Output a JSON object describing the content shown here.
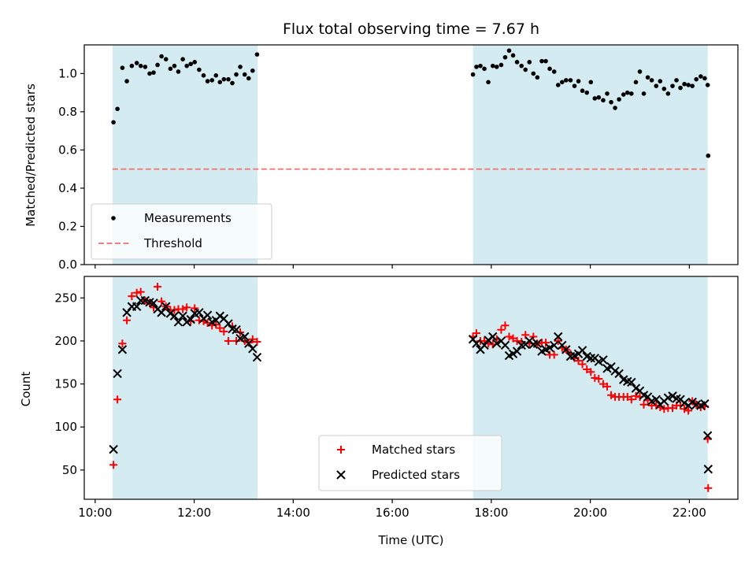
{
  "chart_data": [
    {
      "type": "scatter",
      "title": "Flux total observing time = 7.67 h",
      "xlabel": "",
      "ylabel": "Matched/Predicted stars",
      "xlim": [
        9.78,
        22.98
      ],
      "ylim": [
        0.0,
        1.15
      ],
      "yticks": [
        0.0,
        0.2,
        0.4,
        0.6,
        0.8,
        1.0
      ],
      "ytick_labels": [
        "0.0",
        "0.2",
        "0.4",
        "0.6",
        "0.8",
        "1.0"
      ],
      "legend_placement": "lower-left",
      "shaded_intervals": [
        [
          10.35,
          13.28
        ],
        [
          17.63,
          22.37
        ]
      ],
      "shade_color": "#d3ebf1",
      "series": [
        {
          "name": "Measurements",
          "marker": "dot",
          "color": "#000000",
          "x": [
            10.37,
            10.45,
            10.55,
            10.64,
            10.74,
            10.84,
            10.92,
            11.01,
            11.1,
            11.18,
            11.26,
            11.34,
            11.43,
            11.52,
            11.6,
            11.68,
            11.77,
            11.85,
            11.93,
            12.01,
            12.1,
            12.19,
            12.27,
            12.36,
            12.44,
            12.52,
            12.6,
            12.69,
            12.77,
            12.85,
            12.93,
            13.02,
            13.1,
            13.18,
            13.27,
            17.63,
            17.7,
            17.78,
            17.86,
            17.94,
            18.03,
            18.11,
            18.2,
            18.28,
            18.36,
            18.44,
            18.52,
            18.61,
            18.69,
            18.77,
            18.85,
            18.93,
            19.02,
            19.1,
            19.18,
            19.27,
            19.35,
            19.43,
            19.51,
            19.6,
            19.68,
            19.76,
            19.84,
            19.93,
            20.01,
            20.09,
            20.17,
            20.26,
            20.34,
            20.42,
            20.5,
            20.58,
            20.67,
            20.75,
            20.83,
            20.92,
            21.0,
            21.08,
            21.16,
            21.24,
            21.33,
            21.41,
            21.49,
            21.57,
            21.66,
            21.74,
            21.82,
            21.9,
            21.98,
            22.06,
            22.14,
            22.23,
            22.31,
            22.37
          ],
          "y": [
            0.745,
            0.815,
            1.03,
            0.96,
            1.04,
            1.055,
            1.04,
            1.035,
            1.0,
            1.005,
            1.045,
            1.09,
            1.075,
            1.025,
            1.04,
            1.01,
            1.075,
            1.04,
            1.05,
            1.06,
            1.02,
            0.99,
            0.96,
            0.965,
            0.99,
            0.955,
            0.97,
            0.97,
            0.95,
            0.995,
            1.035,
            0.995,
            0.975,
            1.015,
            1.1,
            0.995,
            1.035,
            1.04,
            1.025,
            0.955,
            1.04,
            1.035,
            1.045,
            1.085,
            1.12,
            1.095,
            1.06,
            1.04,
            1.02,
            1.06,
            1.0,
            0.98,
            1.065,
            1.065,
            1.025,
            1.01,
            0.94,
            0.955,
            0.965,
            0.965,
            0.935,
            0.96,
            0.91,
            0.9,
            0.955,
            0.87,
            0.875,
            0.86,
            0.895,
            0.85,
            0.82,
            0.865,
            0.89,
            0.9,
            0.895,
            0.955,
            1.01,
            0.895,
            0.98,
            0.965,
            0.935,
            0.96,
            0.92,
            0.895,
            0.935,
            0.965,
            0.925,
            0.945,
            0.94,
            0.935,
            0.97,
            0.985,
            0.975,
            0.94
          ]
        },
        {
          "name": "",
          "marker": "dot",
          "color": "#000000",
          "x": [
            22.38
          ],
          "y": [
            0.57
          ]
        },
        {
          "name": "Threshold",
          "marker": "dashed-line",
          "color": "#f08080",
          "x": [
            10.35,
            22.37
          ],
          "y": [
            0.5,
            0.5
          ]
        }
      ]
    },
    {
      "type": "scatter",
      "title": "",
      "xlabel": "Time (UTC)",
      "ylabel": "Count",
      "xlim": [
        9.78,
        22.98
      ],
      "ylim": [
        16,
        275
      ],
      "yticks": [
        50,
        100,
        150,
        200,
        250
      ],
      "ytick_labels": [
        "50",
        "100",
        "150",
        "200",
        "250"
      ],
      "xticks": [
        10,
        12,
        14,
        16,
        18,
        20,
        22
      ],
      "xtick_labels": [
        "10:00",
        "12:00",
        "14:00",
        "16:00",
        "18:00",
        "20:00",
        "22:00"
      ],
      "legend_placement": "lower-center",
      "shaded_intervals": [
        [
          10.35,
          13.28
        ],
        [
          17.63,
          22.37
        ]
      ],
      "shade_color": "#d3ebf1",
      "series": [
        {
          "name": "Matched stars",
          "marker": "plus",
          "color": "#ff0000",
          "x": [
            10.37,
            10.45,
            10.55,
            10.64,
            10.74,
            10.84,
            10.92,
            11.01,
            11.1,
            11.18,
            11.26,
            11.34,
            11.43,
            11.52,
            11.6,
            11.68,
            11.77,
            11.85,
            11.93,
            12.01,
            12.1,
            12.19,
            12.27,
            12.36,
            12.44,
            12.52,
            12.6,
            12.69,
            12.77,
            12.85,
            12.93,
            13.02,
            13.1,
            13.18,
            13.27,
            17.63,
            17.7,
            17.78,
            17.86,
            17.94,
            18.03,
            18.11,
            18.2,
            18.28,
            18.36,
            18.44,
            18.52,
            18.61,
            18.69,
            18.77,
            18.85,
            18.93,
            19.02,
            19.1,
            19.18,
            19.27,
            19.35,
            19.43,
            19.51,
            19.6,
            19.68,
            19.76,
            19.84,
            19.93,
            20.01,
            20.09,
            20.17,
            20.26,
            20.34,
            20.42,
            20.5,
            20.58,
            20.67,
            20.75,
            20.83,
            20.92,
            21.0,
            21.08,
            21.16,
            21.24,
            21.33,
            21.41,
            21.49,
            21.57,
            21.66,
            21.74,
            21.82,
            21.9,
            21.98,
            22.06,
            22.14,
            22.23,
            22.31,
            22.37,
            22.38
          ],
          "y": [
            56,
            132,
            197,
            224,
            252,
            256,
            257,
            247,
            244,
            239,
            263,
            246,
            240,
            236,
            236,
            237,
            237,
            239,
            223,
            238,
            224,
            223,
            221,
            218,
            219,
            215,
            211,
            200,
            217,
            200,
            210,
            200,
            198,
            202,
            199,
            205,
            209,
            200,
            200,
            197,
            196,
            202,
            213,
            218,
            205,
            203,
            200,
            199,
            207,
            197,
            205,
            197,
            198,
            198,
            184,
            184,
            200,
            192,
            190,
            185,
            180,
            177,
            173,
            167,
            164,
            157,
            156,
            150,
            147,
            137,
            135,
            135,
            135,
            135,
            132,
            136,
            135,
            126,
            131,
            125,
            125,
            123,
            121,
            122,
            122,
            125,
            125,
            121,
            119,
            130,
            126,
            123,
            124,
            86,
            29
          ]
        },
        {
          "name": "Predicted stars",
          "marker": "x",
          "color": "#000000",
          "x": [
            10.37,
            10.45,
            10.55,
            10.64,
            10.74,
            10.84,
            10.92,
            11.01,
            11.1,
            11.18,
            11.26,
            11.34,
            11.43,
            11.52,
            11.6,
            11.68,
            11.77,
            11.85,
            11.93,
            12.01,
            12.1,
            12.19,
            12.27,
            12.36,
            12.44,
            12.52,
            12.6,
            12.69,
            12.77,
            12.85,
            12.93,
            13.02,
            13.1,
            13.18,
            13.27,
            17.63,
            17.7,
            17.78,
            17.86,
            17.94,
            18.03,
            18.11,
            18.2,
            18.28,
            18.36,
            18.44,
            18.52,
            18.61,
            18.69,
            18.77,
            18.85,
            18.93,
            19.02,
            19.1,
            19.18,
            19.27,
            19.35,
            19.43,
            19.51,
            19.6,
            19.68,
            19.76,
            19.84,
            19.93,
            20.01,
            20.09,
            20.17,
            20.26,
            20.34,
            20.42,
            20.5,
            20.58,
            20.67,
            20.75,
            20.83,
            20.92,
            21.0,
            21.08,
            21.16,
            21.24,
            21.33,
            21.41,
            21.49,
            21.57,
            21.66,
            21.74,
            21.82,
            21.9,
            21.98,
            22.06,
            22.14,
            22.23,
            22.31,
            22.37,
            22.38
          ],
          "y": [
            74,
            162,
            190,
            233,
            240,
            240,
            247,
            247,
            245,
            244,
            237,
            233,
            240,
            232,
            229,
            222,
            229,
            222,
            225,
            232,
            233,
            226,
            230,
            222,
            224,
            229,
            226,
            220,
            214,
            213,
            203,
            205,
            197,
            191,
            181,
            202,
            197,
            190,
            195,
            201,
            205,
            197,
            200,
            195,
            183,
            185,
            188,
            195,
            196,
            200,
            196,
            197,
            188,
            190,
            192,
            195,
            205,
            195,
            190,
            182,
            183,
            185,
            189,
            182,
            180,
            180,
            176,
            178,
            168,
            170,
            165,
            162,
            155,
            153,
            152,
            145,
            142,
            137,
            135,
            130,
            132,
            126,
            130,
            134,
            136,
            133,
            132,
            128,
            125,
            129,
            126,
            125,
            127,
            90,
            51
          ]
        }
      ]
    }
  ]
}
